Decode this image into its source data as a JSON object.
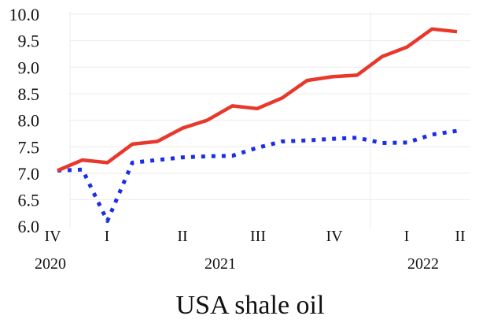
{
  "chart_data": {
    "type": "line",
    "title": "USA shale oil",
    "xlabel": "",
    "ylabel": "",
    "ylim": [
      6.0,
      10.0
    ],
    "yticks": [
      "6.0",
      "6.5",
      "7.0",
      "7.5",
      "8.0",
      "8.5",
      "9.0",
      "9.5",
      "10.0"
    ],
    "grid": true,
    "x_quarter_labels": [
      {
        "label": "IV",
        "index": 0
      },
      {
        "label": "I",
        "index": 2
      },
      {
        "label": "II",
        "index": 5
      },
      {
        "label": "III",
        "index": 8
      },
      {
        "label": "IV",
        "index": 11
      },
      {
        "label": "I",
        "index": 14
      },
      {
        "label": "II",
        "index": 16
      }
    ],
    "x_year_labels": [
      {
        "label": "2020",
        "index": 0
      },
      {
        "label": "2021",
        "index": 6.5
      },
      {
        "label": "2022",
        "index": 14.5
      }
    ],
    "series": [
      {
        "name": "red-solid",
        "color": "#e8382b",
        "style": "solid",
        "values": [
          7.05,
          7.25,
          7.2,
          7.55,
          7.6,
          7.85,
          8.0,
          8.27,
          8.22,
          8.42,
          8.75,
          8.82,
          8.85,
          9.2,
          9.38,
          9.72,
          9.67
        ]
      },
      {
        "name": "blue-dotted",
        "color": "#1a2ee8",
        "style": "dotted",
        "values": [
          7.05,
          7.07,
          6.1,
          7.2,
          7.25,
          7.3,
          7.32,
          7.33,
          7.48,
          7.6,
          7.62,
          7.65,
          7.67,
          7.57,
          7.58,
          7.73,
          7.8
        ]
      }
    ]
  }
}
